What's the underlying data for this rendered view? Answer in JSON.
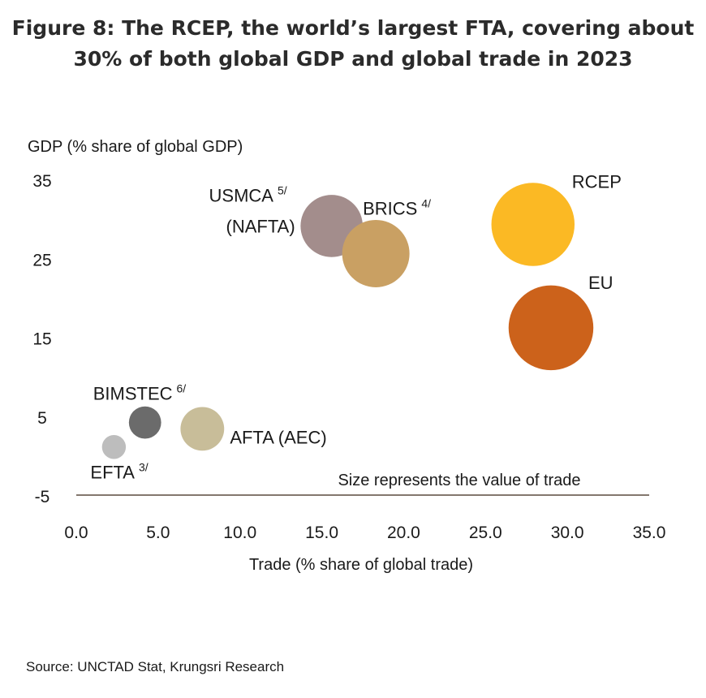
{
  "figure": {
    "title_line1": "Figure 8: The RCEP, the world’s largest FTA, covering about",
    "title_line2": "30% of both global GDP and global trade in 2023",
    "source": "Source: UNCTAD Stat, Krungsri Research"
  },
  "chart_data": {
    "type": "scatter",
    "xlabel": "Trade (% share of global trade)",
    "ylabel": "GDP (% share of global GDP)",
    "xlim": [
      0,
      35
    ],
    "ylim": [
      -5,
      35
    ],
    "x_ticks": [
      "0.0",
      "5.0",
      "10.0",
      "15.0",
      "20.0",
      "25.0",
      "30.0",
      "35.0"
    ],
    "y_ticks": [
      "35",
      "25",
      "15",
      "5",
      "-5"
    ],
    "annotation": "Size represents the value of trade",
    "points": [
      {
        "id": "usmca",
        "label": "USMCA",
        "label_line2": "(NAFTA)",
        "sup": "5/",
        "x": 15.6,
        "y": 29.3,
        "trade_share": 15.6,
        "color": "#a38d8c"
      },
      {
        "id": "brics",
        "label": "BRICS",
        "label_line2": "",
        "sup": "4/",
        "x": 18.3,
        "y": 25.8,
        "trade_share": 18.3,
        "color": "#c9a063"
      },
      {
        "id": "rcep",
        "label": "RCEP",
        "label_line2": "",
        "sup": "",
        "x": 27.9,
        "y": 29.5,
        "trade_share": 27.9,
        "color": "#fbb924"
      },
      {
        "id": "eu",
        "label": "EU",
        "label_line2": "",
        "sup": "",
        "x": 29.0,
        "y": 16.4,
        "trade_share": 29.0,
        "color": "#cc621b"
      },
      {
        "id": "bimstec",
        "label": "BIMSTEC",
        "label_line2": "",
        "sup": "6/",
        "x": 4.2,
        "y": 4.4,
        "trade_share": 4.2,
        "color": "#6b6b6b"
      },
      {
        "id": "afta",
        "label": "AFTA (AEC)",
        "label_line2": "",
        "sup": "",
        "x": 7.7,
        "y": 3.6,
        "trade_share": 7.7,
        "color": "#c8bd99"
      },
      {
        "id": "efta",
        "label": "EFTA",
        "label_line2": "",
        "sup": "3/",
        "x": 2.3,
        "y": 1.3,
        "trade_share": 2.3,
        "color": "#bdbdbd"
      }
    ]
  }
}
